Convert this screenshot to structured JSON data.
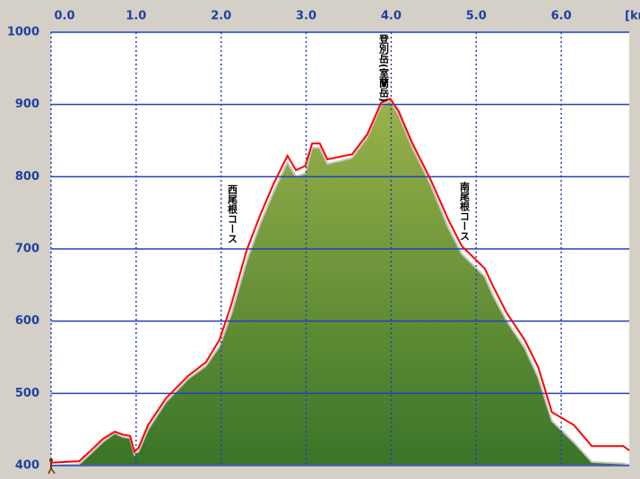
{
  "chart_data": {
    "type": "area-profile",
    "x_unit": "[km]",
    "x": [
      0,
      0.33,
      0.45,
      0.61,
      0.75,
      0.84,
      0.93,
      0.98,
      1.03,
      1.14,
      1.35,
      1.61,
      1.82,
      1.98,
      2.12,
      2.3,
      2.46,
      2.62,
      2.78,
      2.88,
      2.99,
      3.07,
      3.16,
      3.25,
      3.41,
      3.54,
      3.72,
      3.88,
      3.99,
      4.09,
      4.25,
      4.46,
      4.67,
      4.83,
      5.1,
      5.2,
      5.36,
      5.57,
      5.73,
      5.89,
      6.15,
      6.36,
      6.73,
      6.8
    ],
    "series": [
      {
        "color": "#5a8a30",
        "values": [
          400,
          402,
          415,
          433,
          445,
          440,
          438,
          415,
          420,
          450,
          488,
          520,
          538,
          565,
          610,
          683,
          735,
          780,
          820,
          800,
          805,
          840,
          840,
          818,
          822,
          826,
          855,
          898,
          905,
          885,
          840,
          790,
          730,
          693,
          662,
          635,
          600,
          563,
          522,
          462,
          432,
          405,
          403,
          401
        ]
      },
      {
        "color": "#ff0000",
        "values": [
          404,
          406,
          419,
          437,
          447,
          443,
          441,
          419,
          425,
          456,
          493,
          524,
          543,
          574,
          623,
          698,
          747,
          791,
          829,
          809,
          815,
          846,
          846,
          824,
          828,
          831,
          859,
          902,
          908,
          890,
          846,
          797,
          741,
          704,
          673,
          648,
          611,
          574,
          536,
          474,
          456,
          427,
          427,
          421
        ]
      }
    ],
    "xlim": [
      0,
      6.8
    ],
    "xticks": [
      {
        "value": 0,
        "label": "0.0"
      },
      {
        "value": 1,
        "label": "1.0"
      },
      {
        "value": 2,
        "label": "2.0"
      },
      {
        "value": 3,
        "label": "3.0"
      },
      {
        "value": 4,
        "label": "4.0"
      },
      {
        "value": 5,
        "label": "5.0"
      },
      {
        "value": 6,
        "label": "6.0"
      }
    ],
    "ylim": [
      400,
      1000
    ],
    "yticks": [
      400,
      500,
      600,
      700,
      800,
      900,
      1000
    ],
    "grid": true,
    "annotations": [
      "西尾根コース",
      "登別岳(室蘭岳)",
      "南尾根コース"
    ]
  }
}
